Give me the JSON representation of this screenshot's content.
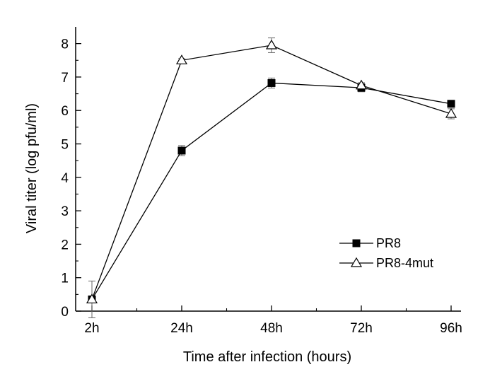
{
  "chart_data": {
    "type": "line",
    "title": "",
    "xlabel": "Time after infection (hours)",
    "ylabel": "Viral titer (log pfu/ml)",
    "categories": [
      "2h",
      "24h",
      "48h",
      "72h",
      "96h"
    ],
    "ylim": [
      0,
      8.5
    ],
    "yticks": [
      "0",
      "1",
      "2",
      "3",
      "4",
      "5",
      "6",
      "7",
      "8"
    ],
    "grid": false,
    "legend_position": "bottom-right",
    "series": [
      {
        "name": "PR8",
        "marker": "filled-square",
        "color": "#000000",
        "values": [
          0.35,
          4.8,
          6.82,
          6.68,
          6.2
        ],
        "errors": [
          0.05,
          0.15,
          0.15,
          0.12,
          0.05
        ]
      },
      {
        "name": "PR8-4mut",
        "marker": "open-triangle",
        "color": "#000000",
        "values": [
          0.35,
          7.5,
          7.95,
          6.75,
          5.9
        ],
        "errors": [
          0.55,
          0.05,
          0.22,
          0.08,
          0.15
        ]
      }
    ]
  }
}
